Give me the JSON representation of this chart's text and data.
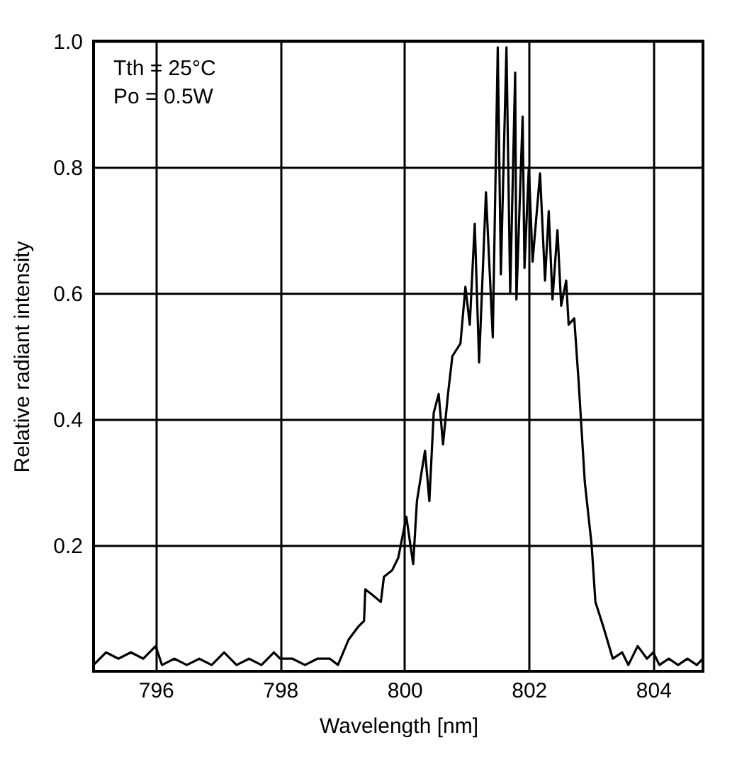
{
  "chart_data": {
    "type": "line",
    "xlabel": "Wavelength [nm]",
    "ylabel": "Relative radiant intensity",
    "annotations": [
      "Tth = 25°C",
      "Po = 0.5W"
    ],
    "xlim": [
      795,
      804.8
    ],
    "xticks": [
      796,
      798,
      800,
      802,
      804
    ],
    "ylim": [
      0,
      1.0
    ],
    "yticks": [
      0.2,
      0.4,
      0.6,
      0.8,
      {
        "value": 1.0,
        "label": "1.0"
      }
    ],
    "grid": true,
    "line_style": "solid",
    "marker": "none",
    "series": [
      {
        "color": "#000000",
        "x": [
          795.0,
          795.2,
          795.4,
          795.6,
          795.8,
          796.0,
          796.1,
          796.3,
          796.5,
          796.7,
          796.9,
          797.1,
          797.3,
          797.5,
          797.7,
          797.9,
          798.0,
          798.2,
          798.4,
          798.6,
          798.8,
          798.93,
          799.1,
          799.25,
          799.35,
          799.37,
          799.5,
          799.62,
          799.67,
          799.8,
          799.9,
          800.03,
          800.14,
          800.2,
          800.33,
          800.4,
          800.47,
          800.55,
          800.62,
          800.7,
          800.77,
          800.9,
          800.98,
          801.05,
          801.13,
          801.2,
          801.31,
          801.42,
          801.5,
          801.55,
          801.64,
          801.7,
          801.78,
          801.8,
          801.9,
          801.93,
          802.0,
          802.06,
          802.18,
          802.26,
          802.32,
          802.38,
          802.46,
          802.52,
          802.6,
          802.64,
          802.73,
          802.8,
          802.9,
          803.01,
          803.07,
          803.2,
          803.35,
          803.5,
          803.6,
          803.75,
          803.9,
          804.0,
          804.1,
          804.25,
          804.4,
          804.55,
          804.7,
          804.8
        ],
        "values": [
          0.01,
          0.03,
          0.02,
          0.03,
          0.02,
          0.04,
          0.01,
          0.02,
          0.01,
          0.02,
          0.01,
          0.03,
          0.01,
          0.02,
          0.01,
          0.03,
          0.02,
          0.02,
          0.01,
          0.02,
          0.02,
          0.01,
          0.05,
          0.07,
          0.08,
          0.13,
          0.12,
          0.11,
          0.15,
          0.16,
          0.18,
          0.245,
          0.17,
          0.27,
          0.35,
          0.27,
          0.41,
          0.44,
          0.36,
          0.44,
          0.5,
          0.52,
          0.61,
          0.55,
          0.71,
          0.49,
          0.76,
          0.53,
          0.99,
          0.63,
          0.99,
          0.6,
          0.95,
          0.59,
          0.88,
          0.64,
          0.8,
          0.65,
          0.79,
          0.62,
          0.73,
          0.59,
          0.7,
          0.58,
          0.62,
          0.55,
          0.56,
          0.46,
          0.3,
          0.2,
          0.11,
          0.07,
          0.02,
          0.03,
          0.01,
          0.04,
          0.02,
          0.03,
          0.01,
          0.02,
          0.01,
          0.02,
          0.01,
          0.02
        ]
      }
    ]
  }
}
